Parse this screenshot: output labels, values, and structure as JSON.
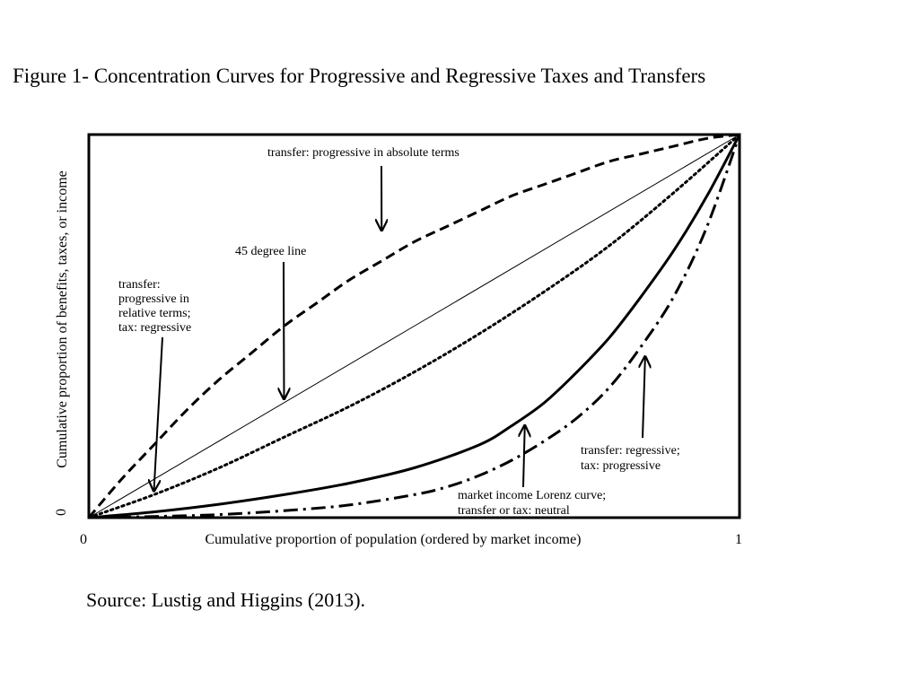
{
  "figure": {
    "title": "Figure 1- Concentration Curves for Progressive and Regressive Taxes and Transfers",
    "source": "Source: Lustig and Higgins (2013)."
  },
  "chart_data": {
    "type": "line",
    "title": "Figure 1- Concentration Curves for Progressive and Regressive Taxes and Transfers",
    "xlabel": "Cumulative proportion of population (ordered by market income)",
    "ylabel": "Cumulative proportion of benefits, taxes, or income",
    "xlim": [
      0,
      1
    ],
    "ylim": [
      0,
      1
    ],
    "x_ticks": [
      "0",
      "1"
    ],
    "y_ticks": [
      "0"
    ],
    "grid": false,
    "legend": "none",
    "series": [
      {
        "style": "dashed",
        "x": [
          0,
          0.05,
          0.1,
          0.15,
          0.2,
          0.25,
          0.3,
          0.35,
          0.4,
          0.45,
          0.5,
          0.55,
          0.6,
          0.65,
          0.7,
          0.75,
          0.8,
          0.85,
          0.9,
          0.95,
          1
        ],
        "y": [
          0,
          0.1,
          0.19,
          0.28,
          0.36,
          0.43,
          0.5,
          0.56,
          0.62,
          0.67,
          0.72,
          0.76,
          0.8,
          0.84,
          0.87,
          0.9,
          0.93,
          0.95,
          0.97,
          0.99,
          1
        ]
      },
      {
        "style": "solid-thin",
        "x": [
          0,
          1
        ],
        "y": [
          0,
          1
        ]
      },
      {
        "style": "dotted",
        "x": [
          0,
          0.1,
          0.2,
          0.3,
          0.4,
          0.5,
          0.6,
          0.7,
          0.8,
          0.9,
          1
        ],
        "y": [
          0,
          0.06,
          0.13,
          0.21,
          0.29,
          0.38,
          0.48,
          0.59,
          0.71,
          0.85,
          1
        ]
      },
      {
        "style": "solid-thick",
        "x": [
          0,
          0.1,
          0.2,
          0.3,
          0.4,
          0.5,
          0.6,
          0.65,
          0.7,
          0.75,
          0.8,
          0.85,
          0.9,
          0.95,
          1
        ],
        "y": [
          0,
          0.015,
          0.035,
          0.06,
          0.09,
          0.13,
          0.19,
          0.24,
          0.3,
          0.38,
          0.47,
          0.58,
          0.7,
          0.84,
          1
        ]
      },
      {
        "style": "dash-dot",
        "x": [
          0,
          0.1,
          0.2,
          0.3,
          0.4,
          0.5,
          0.55,
          0.6,
          0.65,
          0.7,
          0.75,
          0.8,
          0.85,
          0.9,
          0.95,
          1
        ],
        "y": [
          0,
          0.003,
          0.008,
          0.018,
          0.033,
          0.06,
          0.08,
          0.11,
          0.15,
          0.2,
          0.26,
          0.34,
          0.45,
          0.58,
          0.76,
          1
        ]
      }
    ],
    "annotations": [
      {
        "lines": [
          "transfer: progressive in absolute terms"
        ],
        "target": [
          0.45,
          0.75
        ]
      },
      {
        "lines": [
          "45 degree line"
        ],
        "target": [
          0.3,
          0.31
        ]
      },
      {
        "lines": [
          "transfer:",
          "progressive in",
          "relative terms;",
          "tax: regressive"
        ],
        "target": [
          0.1,
          0.07
        ]
      },
      {
        "lines": [
          "transfer: regressive;",
          "tax: progressive"
        ],
        "target": [
          0.855,
          0.42
        ]
      },
      {
        "lines": [
          "market income Lorenz curve;",
          "transfer or tax: neutral"
        ],
        "target": [
          0.67,
          0.24
        ]
      }
    ]
  }
}
